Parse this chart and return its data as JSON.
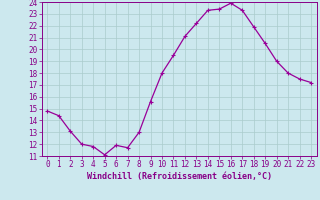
{
  "x": [
    0,
    1,
    2,
    3,
    4,
    5,
    6,
    7,
    8,
    9,
    10,
    11,
    12,
    13,
    14,
    15,
    16,
    17,
    18,
    19,
    20,
    21,
    22,
    23
  ],
  "y": [
    14.8,
    14.4,
    13.1,
    12.0,
    11.8,
    11.1,
    11.9,
    11.7,
    13.0,
    15.6,
    18.0,
    19.5,
    21.1,
    22.2,
    23.3,
    23.4,
    23.9,
    23.3,
    21.9,
    20.5,
    19.0,
    18.0,
    17.5,
    17.2
  ],
  "xlabel": "Windchill (Refroidissement éolien,°C)",
  "ylim": [
    11,
    24
  ],
  "xlim_min": -0.5,
  "xlim_max": 23.5,
  "yticks": [
    11,
    12,
    13,
    14,
    15,
    16,
    17,
    18,
    19,
    20,
    21,
    22,
    23,
    24
  ],
  "xticks": [
    0,
    1,
    2,
    3,
    4,
    5,
    6,
    7,
    8,
    9,
    10,
    11,
    12,
    13,
    14,
    15,
    16,
    17,
    18,
    19,
    20,
    21,
    22,
    23
  ],
  "line_color": "#990099",
  "marker_color": "#990099",
  "bg_color": "#cce8ee",
  "grid_color": "#aacccc",
  "label_color": "#880088",
  "tick_color": "#880088",
  "spine_color": "#880088",
  "tick_fontsize": 5.5,
  "xlabel_fontsize": 6.0,
  "marker_size": 2.5,
  "line_width": 0.9
}
